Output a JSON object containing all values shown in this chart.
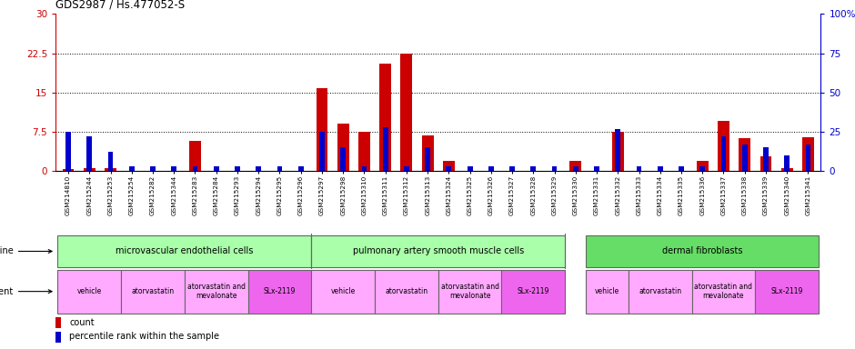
{
  "title": "GDS2987 / Hs.477052-S",
  "samples": [
    "GSM214810",
    "GSM215244",
    "GSM215253",
    "GSM215254",
    "GSM215282",
    "GSM215344",
    "GSM215283",
    "GSM215284",
    "GSM215293",
    "GSM215294",
    "GSM215295",
    "GSM215296",
    "GSM215297",
    "GSM215298",
    "GSM215310",
    "GSM215311",
    "GSM215312",
    "GSM215313",
    "GSM215324",
    "GSM215325",
    "GSM215326",
    "GSM215327",
    "GSM215328",
    "GSM215329",
    "GSM215330",
    "GSM215331",
    "GSM215332",
    "GSM215333",
    "GSM215334",
    "GSM215335",
    "GSM215336",
    "GSM215337",
    "GSM215338",
    "GSM215339",
    "GSM215340",
    "GSM215341"
  ],
  "count_values": [
    0.3,
    0.5,
    0.5,
    0.0,
    0.0,
    0.0,
    5.8,
    0.0,
    0.0,
    0.0,
    0.0,
    0.0,
    15.8,
    9.0,
    7.5,
    20.5,
    22.5,
    6.8,
    2.0,
    0.0,
    0.0,
    0.0,
    0.0,
    0.0,
    2.0,
    0.0,
    7.5,
    0.0,
    0.0,
    0.0,
    2.0,
    9.5,
    6.2,
    2.8,
    0.5,
    6.5
  ],
  "percentile_values": [
    25.0,
    22.0,
    12.0,
    3.0,
    3.0,
    3.0,
    3.0,
    3.0,
    3.0,
    3.0,
    3.0,
    3.0,
    25.0,
    15.0,
    3.0,
    28.0,
    3.0,
    15.0,
    3.0,
    3.0,
    3.0,
    3.0,
    3.0,
    3.0,
    3.0,
    3.0,
    27.0,
    3.0,
    3.0,
    3.0,
    3.0,
    22.0,
    17.0,
    15.0,
    10.0,
    17.0
  ],
  "ylim_left": [
    0,
    30
  ],
  "ylim_right": [
    0,
    100
  ],
  "yticks_left": [
    0,
    7.5,
    15,
    22.5,
    30
  ],
  "yticks_right": [
    0,
    25,
    50,
    75,
    100
  ],
  "ytick_labels_left": [
    "0",
    "7.5",
    "15",
    "22.5",
    "30"
  ],
  "ytick_labels_right": [
    "0",
    "25",
    "50",
    "75",
    "100%"
  ],
  "bar_color": "#cc0000",
  "dot_color": "#0000cc",
  "cell_line_groups": [
    {
      "label": "microvascular endothelial cells",
      "start": 0,
      "end": 11,
      "color": "#aaffaa"
    },
    {
      "label": "pulmonary artery smooth muscle cells",
      "start": 12,
      "end": 23,
      "color": "#aaffaa"
    },
    {
      "label": "dermal fibroblasts",
      "start": 25,
      "end": 35,
      "color": "#66dd66"
    }
  ],
  "agent_groups": [
    {
      "label": "vehicle",
      "start": 0,
      "end": 2,
      "color": "#ffaaff"
    },
    {
      "label": "atorvastatin",
      "start": 3,
      "end": 5,
      "color": "#ffaaff"
    },
    {
      "label": "atorvastatin and\nmevalonate",
      "start": 6,
      "end": 8,
      "color": "#ffaaff"
    },
    {
      "label": "SLx-2119",
      "start": 9,
      "end": 11,
      "color": "#ee66ee"
    },
    {
      "label": "vehicle",
      "start": 12,
      "end": 14,
      "color": "#ffaaff"
    },
    {
      "label": "atorvastatin",
      "start": 15,
      "end": 17,
      "color": "#ffaaff"
    },
    {
      "label": "atorvastatin and\nmevalonate",
      "start": 18,
      "end": 20,
      "color": "#ffaaff"
    },
    {
      "label": "SLx-2119",
      "start": 21,
      "end": 23,
      "color": "#ee66ee"
    },
    {
      "label": "vehicle",
      "start": 25,
      "end": 26,
      "color": "#ffaaff"
    },
    {
      "label": "atorvastatin",
      "start": 27,
      "end": 29,
      "color": "#ffaaff"
    },
    {
      "label": "atorvastatin and\nmevalonate",
      "start": 30,
      "end": 32,
      "color": "#ffaaff"
    },
    {
      "label": "SLx-2119",
      "start": 33,
      "end": 35,
      "color": "#ee66ee"
    }
  ],
  "legend_items": [
    {
      "label": "count",
      "color": "#cc0000"
    },
    {
      "label": "percentile rank within the sample",
      "color": "#0000cc"
    }
  ],
  "background_color": "#ffffff",
  "label_color_left": "#cc0000",
  "label_color_right": "#0000cc"
}
